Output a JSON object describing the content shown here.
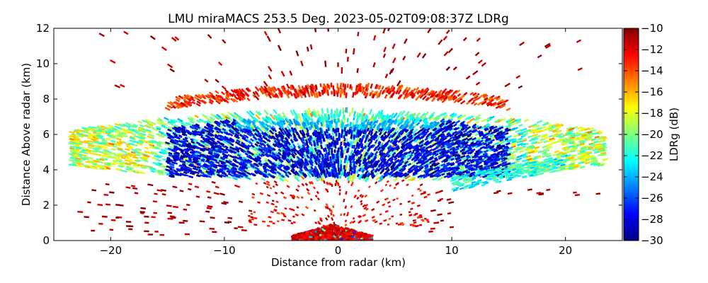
{
  "chart_data": {
    "type": "heatmap",
    "title": "LMU miraMACS 253.5 Deg. 2023-05-02T09:08:37Z  LDRg",
    "xlabel": "Distance from radar (km)",
    "ylabel": "Distance Above radar  (km)",
    "xlim": [
      -25,
      25
    ],
    "ylim": [
      0,
      12
    ],
    "xticks": [
      -20,
      -10,
      0,
      10,
      20
    ],
    "yticks": [
      0,
      2,
      4,
      6,
      8,
      10,
      12
    ],
    "grid": false,
    "colorbar": {
      "label": "LDRg (dB)",
      "range": [
        -30,
        -10
      ],
      "ticks": [
        -10,
        -12,
        -14,
        -16,
        -18,
        -20,
        -22,
        -24,
        -26,
        -28,
        -30
      ],
      "colormap": [
        "#00007f",
        "#0000ff",
        "#007fff",
        "#00ffff",
        "#7fff7f",
        "#ffff00",
        "#ff7f00",
        "#ff0000",
        "#7f0000"
      ]
    },
    "regions": [
      {
        "name": "Main cloud layer core",
        "x_range": [
          -15,
          15
        ],
        "y_range": [
          3.5,
          7.2
        ],
        "ldr_db": -28
      },
      {
        "name": "Cloud layer edges",
        "x_range": [
          -23.5,
          23.5
        ],
        "y_range": [
          3.2,
          7.8
        ],
        "ldr_db": -21
      },
      {
        "name": "Cloud top",
        "x_range": [
          -15,
          15
        ],
        "y_range": [
          7.6,
          8.6
        ],
        "ldr_db": -11
      },
      {
        "name": "Near-ground clutter",
        "x_range": [
          -4,
          3
        ],
        "y_range": [
          0,
          0.9
        ],
        "ldr_db": -12
      },
      {
        "name": "Scattered upper returns",
        "x_range": [
          -22,
          22
        ],
        "y_range": [
          8.5,
          12
        ],
        "ldr_db": -10
      }
    ]
  }
}
